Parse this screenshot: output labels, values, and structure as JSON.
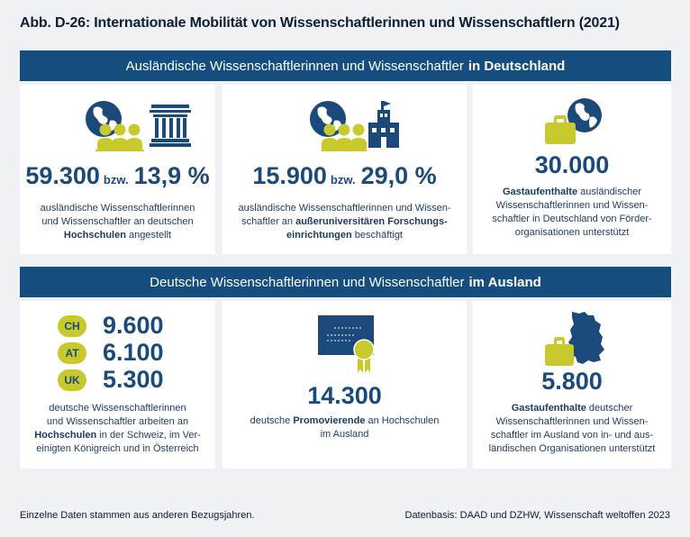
{
  "title": "Abb. D-26: Internationale Mobilität von Wissenschaftlerinnen und Wissenschaftlern (2021)",
  "section1": {
    "label_normal": "Ausländische Wissenschaftlerinnen und Wissenschaftler",
    "label_bold": "in Deutschland",
    "cards": [
      {
        "value": "59.300",
        "connector": "bzw.",
        "percent": "13,9 %",
        "line1": "ausländische Wissenschaftlerinnen",
        "line2": "und Wissenschaftler an deutschen",
        "line3_bold": "Hochschulen",
        "line3_rest": " angestellt",
        "icons": [
          "globe-icon",
          "people-icon",
          "university-building-icon"
        ]
      },
      {
        "value": "15.900",
        "connector": "bzw.",
        "percent": "29,0 %",
        "line1": "ausländische Wissenschaftlerinnen und Wissen-",
        "line2_pre": "schaftler an ",
        "line2_bold": "außeruniversitären Forschungs-",
        "line3_bold": "einrichtungen",
        "line3_rest": " beschäftigt",
        "icons": [
          "globe-icon",
          "people-icon",
          "research-building-icon"
        ]
      },
      {
        "value": "30.000",
        "line1_bold": "Gastaufenthalte",
        "line1_rest": " ausländischer",
        "line2": "Wissenschaftlerinnen und Wissen-",
        "line3": "schaftler in Deutschland von Förder-",
        "line4": "organisationen unterstützt",
        "icons": [
          "briefcase-icon",
          "globe-icon"
        ]
      }
    ]
  },
  "section2": {
    "label_normal": "Deutsche Wissenschaftlerinnen und Wissenschaftler",
    "label_bold": "im Ausland",
    "countries": [
      {
        "code": "CH",
        "value": "9.600"
      },
      {
        "code": "AT",
        "value": "6.100"
      },
      {
        "code": "UK",
        "value": "5.300"
      }
    ],
    "card1": {
      "line1": "deutsche Wissenschaftlerinnen",
      "line2": "und Wissenschaftler arbeiten an",
      "line3_bold": "Hochschulen",
      "line3_rest": " in der Schweiz, im Ver-",
      "line4": "einigten Königreich und in Österreich"
    },
    "card2": {
      "value": "14.300",
      "line1_pre": "deutsche ",
      "line1_bold": "Promovierende",
      "line1_rest": " an Hochschulen",
      "line2": "im Ausland",
      "icons": [
        "certificate-icon"
      ]
    },
    "card3": {
      "value": "5.800",
      "line1_bold": "Gastaufenthalte",
      "line1_rest": " deutscher",
      "line2": "Wissenschaftlerinnen und Wissen-",
      "line3": "schaftler im Ausland von in- und aus-",
      "line4": "ländischen Organisationen unterstützt",
      "icons": [
        "briefcase-icon",
        "germany-map-icon"
      ]
    }
  },
  "footer": {
    "note": "Einzelne Daten stammen aus anderen Bezugsjahren.",
    "source": "Datenbasis: DAAD und DZHW, Wissenschaft weltoffen 2023"
  },
  "colors": {
    "band": "#154d7e",
    "value_text": "#1b4a7a",
    "accent": "#c8c92c",
    "background": "#eff1f4"
  }
}
